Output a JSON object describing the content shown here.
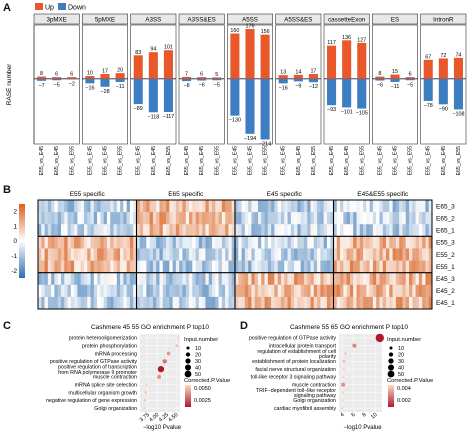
{
  "panels": {
    "a": "A",
    "b": "B",
    "c": "C",
    "d": "D"
  },
  "colors": {
    "up": "#e8582b",
    "down": "#3d7dc2",
    "strip": "#e8e8e8",
    "heat_high": "#d95f1e",
    "heat_mid": "#ffffff",
    "heat_low": "#2f6fb0",
    "dot_high": "#b2182b",
    "dot_low": "#fcd9c3"
  },
  "chart_data": [
    {
      "type": "bar",
      "legend": {
        "up": "Up",
        "down": "Down"
      },
      "ylabel": "RASE number",
      "facets": [
        {
          "name": "3pMXE",
          "categories": [
            "E55_vs_E45",
            "E65_vs_E45",
            "E65_vs_E55"
          ],
          "up": [
            8,
            6,
            6
          ],
          "down": [
            -7,
            -5,
            -2
          ]
        },
        {
          "name": "5pMXE",
          "categories": [
            "E55_vs_E45",
            "E65_vs_E45",
            "E65_vs_E55"
          ],
          "up": [
            10,
            17,
            20
          ],
          "down": [
            -16,
            -28,
            -11
          ]
        },
        {
          "name": "A3SS",
          "categories": [
            "E55_vs_E45",
            "E65_vs_E45",
            "E65_vs_E55"
          ],
          "up": [
            83,
            94,
            101
          ],
          "down": [
            -89,
            -118,
            -117
          ]
        },
        {
          "name": "A3SS&ES",
          "categories": [
            "E55_vs_E45",
            "E65_vs_E45",
            "E65_vs_E55"
          ],
          "up": [
            7,
            6,
            5
          ],
          "down": [
            -8,
            -6,
            -5
          ]
        },
        {
          "name": "A5SS",
          "categories": [
            "E55_vs_E45",
            "E65_vs_E45",
            "E65_vs_E55"
          ],
          "up": [
            160,
            176,
            156
          ],
          "down": [
            -130,
            -194,
            -214
          ]
        },
        {
          "name": "A5SS&ES",
          "categories": [
            "E55_vs_E45",
            "E65_vs_E45",
            "E65_vs_E55"
          ],
          "up": [
            13,
            14,
            17
          ],
          "down": [
            -16,
            -9,
            -12
          ]
        },
        {
          "name": "cassetteExon",
          "categories": [
            "E55_vs_E45",
            "E65_vs_E45",
            "E65_vs_E55"
          ],
          "up": [
            117,
            136,
            127
          ],
          "down": [
            -93,
            -101,
            -105
          ]
        },
        {
          "name": "ES",
          "categories": [
            "E55_vs_E45",
            "E65_vs_E45",
            "E65_vs_E55"
          ],
          "up": [
            8,
            15,
            6
          ],
          "down": [
            -6,
            -11,
            -5
          ]
        },
        {
          "name": "IntronR",
          "categories": [
            "E55_vs_E45",
            "E65_vs_E45",
            "E65_vs_E55"
          ],
          "up": [
            67,
            72,
            74
          ],
          "down": [
            -78,
            -90,
            -108
          ]
        }
      ],
      "ylim": [
        -230,
        190
      ]
    },
    {
      "type": "heatmap",
      "column_groups": [
        "E55 specific",
        "E65 specific",
        "E45 specific",
        "E45&E55 specific"
      ],
      "rows": [
        "E65_3",
        "E65_2",
        "E65_1",
        "E55_3",
        "E55_2",
        "E55_1",
        "E45_3",
        "E45_2",
        "E45_1"
      ],
      "color_scale": {
        "ticks": [
          "2",
          "1",
          "0",
          "-1",
          "-2"
        ],
        "range": [
          -2.5,
          2.5
        ]
      }
    },
    {
      "type": "scatter",
      "title": "Cashmere 45 55 GO enrichment P top10",
      "xlabel": "−log10 Pvalue",
      "xticks": [
        "3.75",
        "4.00",
        "4.25",
        "4.50"
      ],
      "xlim": [
        3.55,
        4.6
      ],
      "terms": [
        "protein heterooligomerization",
        "protein phosphorylation",
        "mRNA processing",
        "positive regulation of GTPase activity",
        "positive regulation of transcription\nfrom RNA polymerase II promoter",
        "muscle contraction",
        "mRNA splice site selection",
        "multicellular organism growth",
        "negative regulation of gene expression",
        "Golgi organization"
      ],
      "x": [
        4.55,
        4.52,
        4.3,
        4.2,
        4.1,
        4.05,
        3.72,
        3.7,
        3.68,
        3.66
      ],
      "size_legend_title": "Input.number",
      "size_legend": [
        10,
        20,
        30,
        40,
        50
      ],
      "sizes": [
        4,
        6,
        10,
        14,
        28,
        11,
        4,
        5,
        5,
        4
      ],
      "color_legend_title": "Corrected.P.Value",
      "color_ticks": [
        "0.0050",
        "0.0025"
      ]
    },
    {
      "type": "scatter",
      "title": "Cashmere 55 65 GO enrichment P top10",
      "xlabel": "−log10 Pvalue",
      "xticks": [
        "4",
        "6",
        "8",
        "10"
      ],
      "xlim": [
        3.4,
        11.2
      ],
      "terms": [
        "positive regulation of GTPase activity",
        "intracellular protein transport",
        "regulation of establishment of cell\npolarity",
        "establishment of protein localization",
        "facial nerve structural organization",
        "toll-like receptor 3 signaling pathway",
        "muscle contraction",
        "TRIF−dependent toll−like receptor\nsignaling pathway",
        "Golgi organization",
        "cardiac myofibril assembly"
      ],
      "x": [
        10.8,
        6.2,
        4.6,
        4.3,
        4.25,
        4.2,
        4.15,
        4.1,
        4.05,
        4.0
      ],
      "size_legend_title": "Input.number",
      "size_legend": [
        10,
        20,
        30,
        40,
        50
      ],
      "sizes": [
        50,
        12,
        5,
        6,
        4,
        4,
        11,
        4,
        4,
        4
      ],
      "color_legend_title": "Corrected.P.Value",
      "color_ticks": [
        "0.004",
        "0.002"
      ]
    }
  ]
}
